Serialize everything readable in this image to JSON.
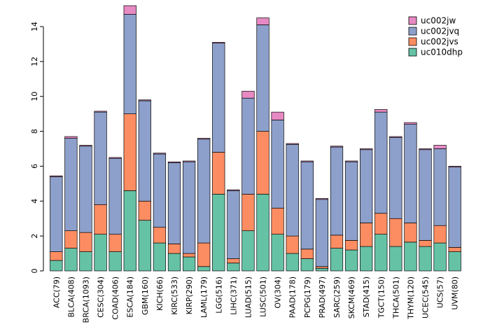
{
  "chart_data": {
    "type": "bar",
    "stacked": true,
    "title": "",
    "xlabel": "",
    "ylabel": "",
    "ylim": [
      0,
      14
    ],
    "yticks": [
      0,
      2,
      4,
      6,
      8,
      10,
      12,
      14
    ],
    "grid": false,
    "legend_position": "top-right",
    "categories": [
      "ACC(79)",
      "BLCA(408)",
      "BRCA(1093)",
      "CESC(304)",
      "COAD(406)",
      "ESCA(184)",
      "GBM(160)",
      "KICH(66)",
      "KIRC(533)",
      "KIRP(290)",
      "LAML(179)",
      "LGG(516)",
      "LIHC(371)",
      "LUAD(515)",
      "LUSC(501)",
      "OV(304)",
      "PAAD(178)",
      "PCPG(179)",
      "PRAD(497)",
      "SARC(259)",
      "SKCM(469)",
      "STAD(415)",
      "TGCT(150)",
      "THCA(501)",
      "THYM(120)",
      "UCEC(545)",
      "UCS(57)",
      "UVM(80)"
    ],
    "series": [
      {
        "name": "uc010dhp",
        "color": "#66C2A5",
        "values": [
          0.6,
          1.3,
          1.1,
          2.1,
          1.1,
          4.6,
          2.9,
          1.6,
          1.0,
          0.8,
          0.25,
          4.4,
          0.45,
          2.3,
          4.4,
          2.1,
          1.0,
          0.7,
          0.15,
          1.3,
          1.2,
          1.4,
          2.1,
          1.4,
          1.65,
          1.4,
          1.6,
          1.1
        ]
      },
      {
        "name": "uc002jvs",
        "color": "#FC8D62",
        "values": [
          0.5,
          1.0,
          1.1,
          1.7,
          1.0,
          4.4,
          1.1,
          0.9,
          0.55,
          0.2,
          1.35,
          2.4,
          0.25,
          2.1,
          3.6,
          1.5,
          1.0,
          0.55,
          0.1,
          0.75,
          0.55,
          1.35,
          1.2,
          1.6,
          1.1,
          0.35,
          1.0,
          0.25
        ]
      },
      {
        "name": "uc002jvq",
        "color": "#8DA0CB",
        "values": [
          4.3,
          5.3,
          4.95,
          5.3,
          4.35,
          5.7,
          5.75,
          4.2,
          4.65,
          5.25,
          5.95,
          6.25,
          3.9,
          5.5,
          6.1,
          5.05,
          5.25,
          5.0,
          3.85,
          5.05,
          4.5,
          4.2,
          5.8,
          4.65,
          5.65,
          5.2,
          4.4,
          4.6
        ]
      },
      {
        "name": "uc002jw",
        "color": "#E78AC3",
        "values": [
          0.05,
          0.1,
          0.05,
          0.05,
          0.05,
          0.5,
          0.05,
          0.05,
          0.05,
          0.05,
          0.05,
          0.05,
          0.05,
          0.4,
          0.4,
          0.45,
          0.05,
          0.05,
          0.05,
          0.05,
          0.05,
          0.05,
          0.15,
          0.05,
          0.1,
          0.05,
          0.2,
          0.05
        ]
      }
    ],
    "legend_entries": [
      "uc002jw",
      "uc002jvq",
      "uc002jvs",
      "uc010dhp"
    ],
    "axis_color": "#000000",
    "bar_border_color": "#000000"
  }
}
